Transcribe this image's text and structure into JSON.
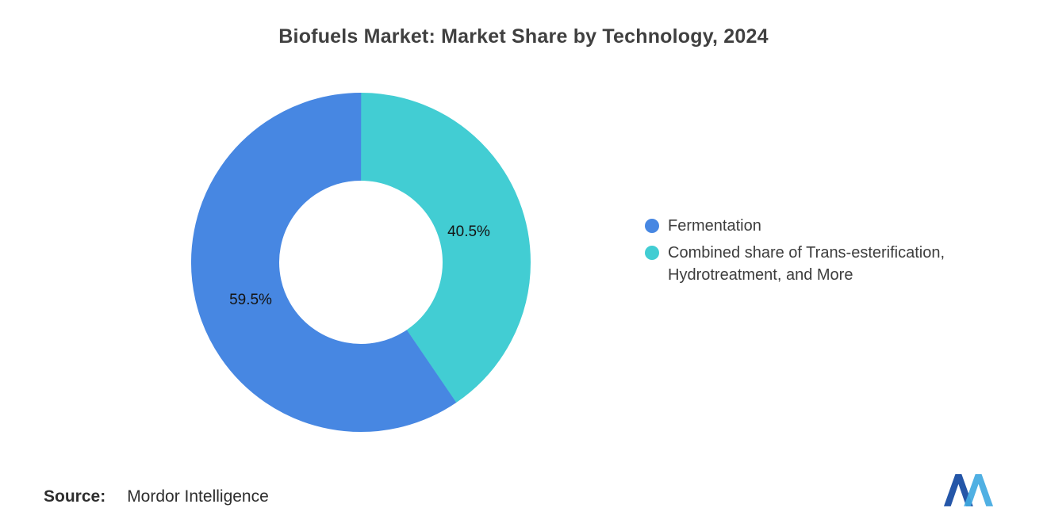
{
  "title": "Biofuels Market: Market Share by Technology, 2024",
  "chart_data": {
    "type": "pie",
    "donut": true,
    "title": "Biofuels Market: Market Share by Technology, 2024",
    "unit": "%",
    "total": 100,
    "slices": [
      {
        "name": "Fermentation",
        "value": 59.5,
        "label": "59.5%",
        "color": "#4787E2"
      },
      {
        "name": "Combined share of Trans-esterification, Hydrotreatment, and More",
        "value": 40.5,
        "label": "40.5%",
        "color": "#42CDD3"
      }
    ],
    "start_angle_deg": 0,
    "direction": "clockwise",
    "clockwise_from_top_order": [
      1,
      0
    ],
    "legend_position": "right",
    "hole_ratio": 0.48
  },
  "legend": {
    "items": [
      {
        "label": "Fermentation",
        "color": "#4787E2"
      },
      {
        "label": "Combined share of Trans-esterification, Hydrotreatment, and More",
        "color": "#42CDD3"
      }
    ]
  },
  "footer": {
    "source_label": "Source:",
    "source_value": "Mordor Intelligence",
    "logo": "mordor-intelligence-logo",
    "logo_colors": {
      "dark": "#2456A8",
      "light": "#41A9E1"
    }
  }
}
